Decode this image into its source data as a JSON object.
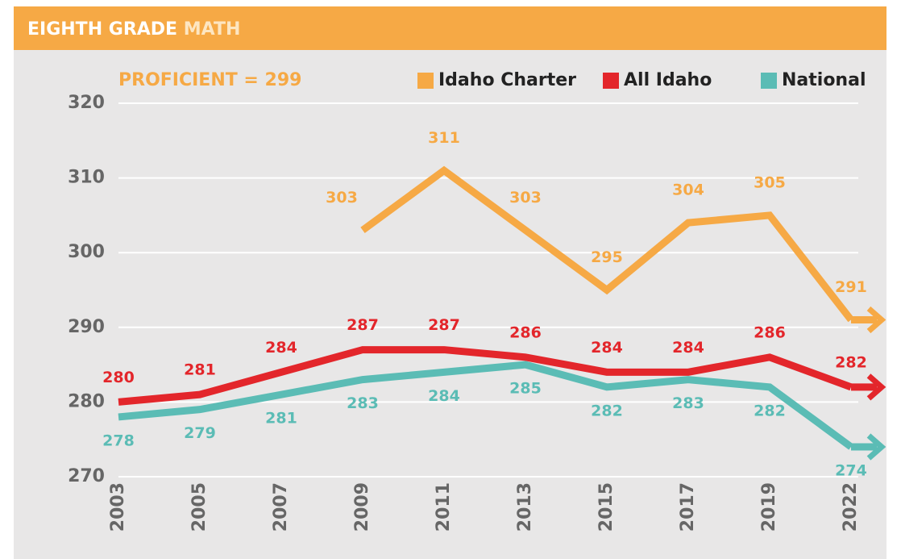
{
  "chart_data": {
    "type": "line",
    "title_parts": [
      "EIGHTH GRADE",
      "MATH"
    ],
    "annotation": "PROFICIENT = 299",
    "categories": [
      "2003",
      "2005",
      "2007",
      "2009",
      "2011",
      "2013",
      "2015",
      "2017",
      "2019",
      "2022"
    ],
    "series": [
      {
        "name": "Idaho Charter",
        "color": "#f6a945",
        "values": [
          null,
          null,
          null,
          303,
          311,
          303,
          295,
          304,
          305,
          291
        ]
      },
      {
        "name": "All Idaho",
        "color": "#e3262b",
        "values": [
          280,
          281,
          284,
          287,
          287,
          286,
          284,
          284,
          286,
          282
        ]
      },
      {
        "name": "National",
        "color": "#5bbcb5",
        "values": [
          278,
          279,
          281,
          283,
          284,
          285,
          282,
          283,
          282,
          274
        ]
      }
    ],
    "ylim": [
      270,
      320
    ],
    "yticks": [
      270,
      280,
      290,
      300,
      310,
      320
    ],
    "grid": true,
    "legend": "top-right"
  }
}
